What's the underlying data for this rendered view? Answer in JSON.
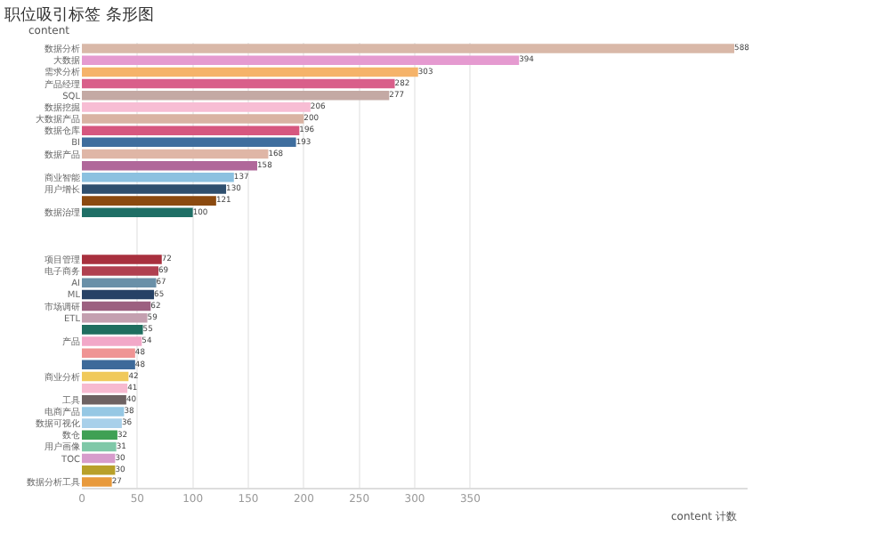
{
  "chart_data": {
    "type": "bar",
    "orientation": "horizontal",
    "title": "职位吸引标签 条形图",
    "xlabel": "content 计数",
    "ylabel": "content",
    "categories": [
      "数据分析",
      "大数据",
      "需求分析",
      "产品经理",
      "SQL",
      "数据挖掘",
      "大数据产品",
      "数据仓库",
      "BI",
      "数据产品",
      null,
      "商业智能",
      "用户增长",
      null,
      "数据治理",
      null,
      null,
      null,
      "项目管理",
      "电子商务",
      "AI",
      "ML",
      "市场调研",
      "ETL",
      null,
      "产品",
      null,
      null,
      "商业分析",
      null,
      "工具",
      "电商产品",
      "数据可视化",
      "数仓",
      "用户画像",
      "TOC",
      null,
      "数据分析工具"
    ],
    "values": [
      588,
      394,
      303,
      282,
      277,
      206,
      200,
      196,
      193,
      168,
      158,
      137,
      130,
      121,
      100,
      null,
      null,
      null,
      72,
      69,
      67,
      65,
      62,
      59,
      55,
      54,
      48,
      48,
      42,
      41,
      40,
      38,
      36,
      32,
      31,
      30,
      30,
      27
    ],
    "colors": [
      "#d9b8a8",
      "#e59ad0",
      "#f5b36a",
      "#d95f8a",
      "#c4a9a4",
      "#f7bdd4",
      "#d9b3a3",
      "#d6577f",
      "#3f6e9e",
      "#dfb6a6",
      "#b0679a",
      "#8cc1e0",
      "#2f4f6e",
      "#8b4a10",
      "#1f6f66",
      "#999999",
      "#999999",
      "#999999",
      "#a8303e",
      "#b04050",
      "#6a90a8",
      "#274266",
      "#9c6080",
      "#c4a0b0",
      "#1f6e5f",
      "#f2a8c8",
      "#ef9494",
      "#3d6a9a",
      "#f0c95a",
      "#f7bad0",
      "#6e6262",
      "#96c8e4",
      "#a8d0ea",
      "#3fa054",
      "#7fc8a8",
      "#d79ccc",
      "#b8a02a",
      "#e89a3c"
    ],
    "xlim": [
      0,
      600
    ],
    "xticks": [
      0,
      50,
      100,
      150,
      200,
      250,
      300,
      350
    ],
    "grid": "x",
    "data_labels": true
  }
}
